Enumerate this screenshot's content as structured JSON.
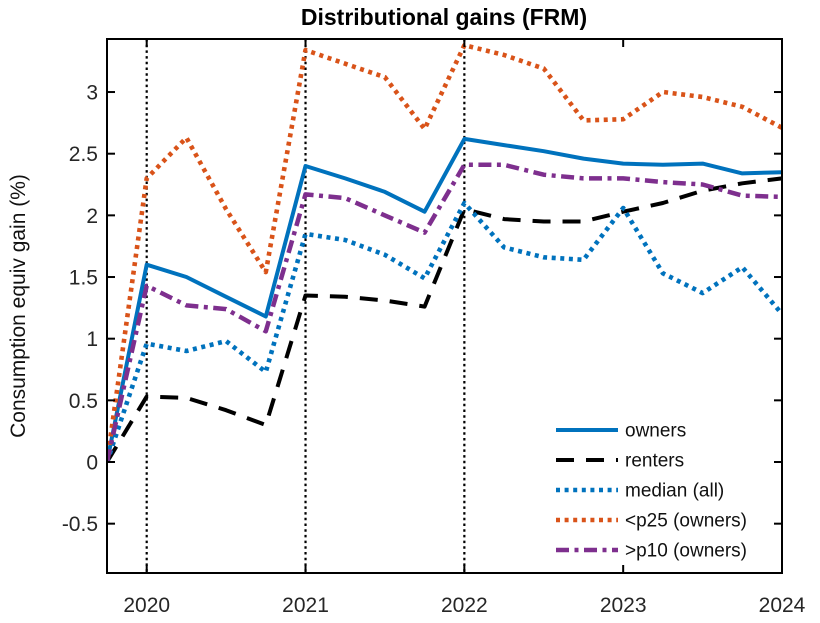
{
  "chart_data": {
    "type": "line",
    "title": "Distributional gains (FRM)",
    "xlabel": "",
    "ylabel": "Consumption equiv gain (%)",
    "grid": false,
    "xlim": [
      2019.75,
      2024
    ],
    "ylim": [
      -0.9,
      3.43
    ],
    "xticks": [
      2020,
      2021,
      2022,
      2023,
      2024
    ],
    "xtick_labels": [
      "2020",
      "2021",
      "2022",
      "2023",
      "2024"
    ],
    "yticks": [
      -0.5,
      0,
      0.5,
      1,
      1.5,
      2,
      2.5,
      3
    ],
    "ytick_labels": [
      "-0.5",
      "0",
      "0.5",
      "1",
      "1.5",
      "2",
      "2.5",
      "3"
    ],
    "vlines": [
      2020,
      2021,
      2022
    ],
    "x": [
      2019.75,
      2020,
      2020.25,
      2020.5,
      2020.75,
      2021,
      2021.25,
      2021.5,
      2021.75,
      2022,
      2022.25,
      2022.5,
      2022.75,
      2023,
      2023.25,
      2023.5,
      2023.75,
      2024
    ],
    "series": [
      {
        "name": "owners",
        "color": "#0072BD",
        "style": "solid",
        "values": [
          0,
          1.6,
          1.5,
          1.34,
          1.18,
          2.4,
          2.3,
          2.19,
          2.03,
          2.62,
          2.57,
          2.52,
          2.46,
          2.42,
          2.41,
          2.42,
          2.34,
          2.35
        ]
      },
      {
        "name": "renters",
        "color": "#000000",
        "style": "dashed",
        "values": [
          0,
          0.53,
          0.52,
          0.42,
          0.3,
          1.35,
          1.34,
          1.31,
          1.26,
          2.05,
          1.97,
          1.95,
          1.95,
          2.03,
          2.1,
          2.2,
          2.26,
          2.3
        ]
      },
      {
        "name": "median (all)",
        "color": "#0072BD",
        "style": "dotted",
        "values": [
          0,
          0.96,
          0.9,
          0.98,
          0.73,
          1.85,
          1.8,
          1.68,
          1.49,
          2.1,
          1.74,
          1.66,
          1.64,
          2.06,
          1.53,
          1.37,
          1.58,
          1.2
        ]
      },
      {
        "name": "<p25 (owners)",
        "color": "#D95319",
        "style": "dotted",
        "values": [
          0,
          2.3,
          2.63,
          2.05,
          1.54,
          3.34,
          3.23,
          3.12,
          2.7,
          3.38,
          3.3,
          3.19,
          2.77,
          2.78,
          3.0,
          2.96,
          2.88,
          2.71
        ]
      },
      {
        "name": ">p10 (owners)",
        "color": "#7E2F8E",
        "style": "dashdot",
        "values": [
          0,
          1.43,
          1.27,
          1.24,
          1.06,
          2.17,
          2.14,
          2.0,
          1.86,
          2.41,
          2.41,
          2.33,
          2.3,
          2.3,
          2.27,
          2.25,
          2.16,
          2.15
        ]
      }
    ],
    "legend": {
      "position": "lower right",
      "entries": [
        "owners",
        "renters",
        "median (all)",
        "<p25 (owners)",
        ">p10 (owners)"
      ]
    }
  }
}
